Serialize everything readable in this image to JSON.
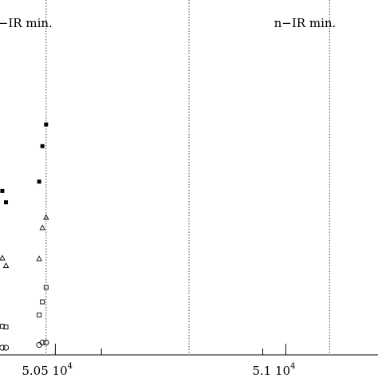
{
  "chart_data": {
    "type": "scatter",
    "title": "",
    "xlabel": "",
    "ylabel": "",
    "xlim": [
      50380,
      51200
    ],
    "ylim": [
      0,
      1
    ],
    "x_ticks_major": [
      {
        "value": 50500,
        "label": "5.05",
        "exponent": "10",
        "power": "4"
      },
      {
        "value": 51000,
        "label": "5.1",
        "exponent": "10",
        "power": "4"
      }
    ],
    "x_ticks_minor": [
      50600,
      50950
    ],
    "minima_lines": [
      {
        "x": 50480,
        "label": "n−IR  min."
      },
      {
        "x": 51095,
        "label": "n−IR  min."
      }
    ],
    "midline_x": 50790,
    "grid": false,
    "legend": "none",
    "series": [
      {
        "marker": "filled-square",
        "points": [
          [
            50385,
            0.455
          ],
          [
            50393,
            0.422
          ],
          [
            50465,
            0.482
          ],
          [
            50472,
            0.585
          ],
          [
            50480,
            0.648
          ]
        ]
      },
      {
        "marker": "open-triangle",
        "points": [
          [
            50385,
            0.26
          ],
          [
            50393,
            0.238
          ],
          [
            50465,
            0.258
          ],
          [
            50472,
            0.348
          ],
          [
            50480,
            0.378
          ]
        ]
      },
      {
        "marker": "open-square",
        "points": [
          [
            50385,
            0.062
          ],
          [
            50393,
            0.06
          ],
          [
            50465,
            0.095
          ],
          [
            50472,
            0.133
          ],
          [
            50480,
            0.175
          ]
        ]
      },
      {
        "marker": "open-circle",
        "points": [
          [
            50385,
            0.0
          ],
          [
            50393,
            0.0
          ],
          [
            50465,
            0.008
          ],
          [
            50472,
            0.015
          ],
          [
            50480,
            0.015
          ]
        ]
      }
    ]
  }
}
